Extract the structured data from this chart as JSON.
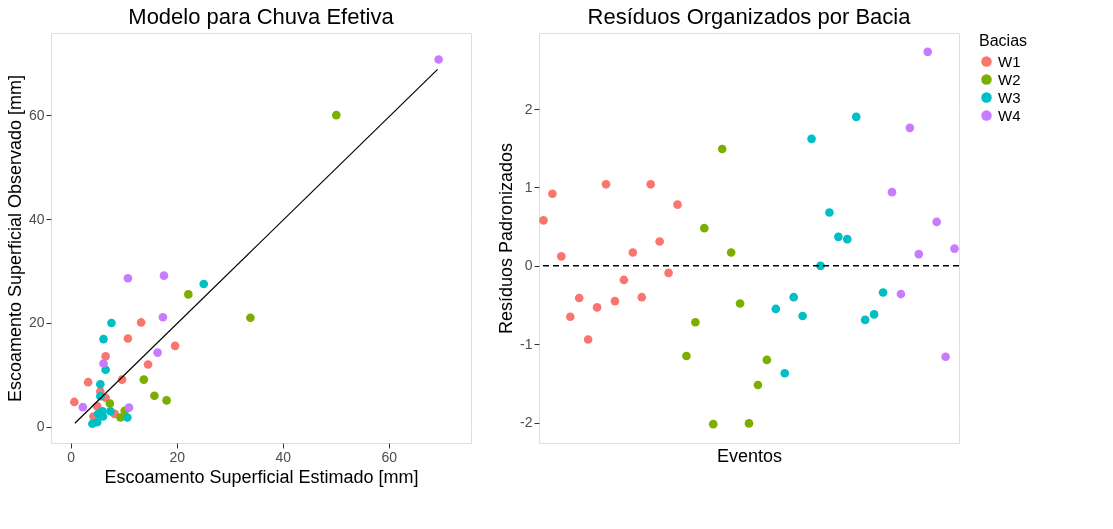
{
  "chart_data": [
    {
      "type": "scatter",
      "title": "Modelo para Chuva Efetiva",
      "xlabel": "Escoamento Superficial Estimado [mm]",
      "ylabel": "Escoamento Superficial Observado [mm]",
      "xlim": [
        -3.7,
        75.5
      ],
      "ylim": [
        -3.1,
        75.8
      ],
      "xticks": [
        0,
        20,
        40,
        60
      ],
      "yticks": [
        0,
        20,
        40,
        60
      ],
      "grid": true,
      "legend": "right",
      "marker": "circle",
      "series": [
        {
          "name": "W1",
          "color": "#f8766d",
          "x": [
            0.7,
            3.3,
            4.3,
            5.6,
            6.6,
            6.6,
            8.3,
            9.7,
            10.8,
            13.3,
            14.6,
            19.7,
            5.0
          ],
          "values": [
            4.8,
            8.6,
            2.0,
            6.8,
            5.6,
            13.6,
            2.5,
            9.1,
            17.0,
            20.1,
            12.0,
            15.6,
            4.0
          ]
        },
        {
          "name": "W2",
          "color": "#7cae00",
          "x": [
            50.1,
            22.2,
            33.9,
            13.8,
            15.8,
            18.1,
            7.4,
            9.4,
            10.2
          ],
          "values": [
            60.0,
            25.5,
            21.0,
            9.1,
            6.0,
            5.1,
            4.5,
            1.8,
            3.1
          ]
        },
        {
          "name": "W3",
          "color": "#00bfc4",
          "x": [
            25.1,
            7.7,
            6.2,
            6.6,
            5.6,
            5.6,
            4.1,
            5.0,
            5.2,
            6.0,
            6.1,
            7.5,
            10.7
          ],
          "values": [
            27.5,
            20.0,
            16.9,
            11.0,
            8.2,
            5.9,
            0.6,
            0.9,
            2.5,
            3.0,
            2.0,
            3.0,
            1.8
          ]
        },
        {
          "name": "W4",
          "color": "#c77cff",
          "x": [
            69.4,
            10.8,
            17.6,
            17.4,
            16.4,
            6.2,
            2.3,
            11.0
          ],
          "values": [
            70.7,
            28.6,
            29.1,
            21.1,
            14.3,
            12.2,
            3.8,
            3.7
          ]
        },
        {
          "type": "line",
          "color": "#000000",
          "marker": "none",
          "line_style": "solid",
          "x": [
            0.8,
            69.2
          ],
          "values": [
            0.7,
            68.8
          ]
        }
      ]
    },
    {
      "type": "scatter",
      "title": "Resíduos Organizados por Bacia",
      "xlabel": "Eventos",
      "ylabel": "Resíduos Padronizados",
      "legend_title": "Bacias",
      "categories": [
        null,
        null,
        null,
        null,
        null,
        null,
        null,
        null,
        null,
        null,
        null,
        null,
        null,
        null,
        null,
        null,
        null,
        null,
        null,
        null,
        null,
        null,
        null,
        null,
        null,
        null,
        null,
        null,
        null,
        null,
        null,
        null,
        null,
        null,
        null,
        null,
        null,
        null,
        null,
        null,
        null,
        null,
        null,
        null,
        null,
        null,
        null
      ],
      "ylim": [
        -2.26,
        2.97
      ],
      "yticks": [
        -2,
        -1,
        0,
        1,
        2
      ],
      "grid": true,
      "legend": "right",
      "tick_labels": "y",
      "marker": "circle",
      "ref_lines": [
        {
          "axis": "y",
          "value": 0,
          "color": "#000000",
          "line_style": "dashed"
        }
      ],
      "series": [
        {
          "name": "W1",
          "color": "#f8766d",
          "values": [
            0.58,
            0.92,
            0.12,
            -0.65,
            -0.41,
            -0.94,
            -0.53,
            1.04,
            -0.45,
            -0.18,
            0.17,
            -0.4,
            1.04,
            0.31,
            -0.09,
            0.78,
            null,
            null,
            null,
            null,
            null,
            null,
            null,
            null,
            null,
            null,
            null,
            null,
            null,
            null,
            null,
            null,
            null,
            null,
            null,
            null,
            null,
            null,
            null,
            null,
            null,
            null,
            null,
            null,
            null,
            null,
            null
          ]
        },
        {
          "name": "W2",
          "color": "#7cae00",
          "values": [
            null,
            null,
            null,
            null,
            null,
            null,
            null,
            null,
            null,
            null,
            null,
            null,
            null,
            null,
            null,
            null,
            -1.15,
            -0.72,
            0.48,
            -2.02,
            1.49,
            0.17,
            -0.48,
            -2.01,
            -1.52,
            -1.2,
            null,
            null,
            null,
            null,
            null,
            null,
            null,
            null,
            null,
            null,
            null,
            null,
            null,
            null,
            null,
            null,
            null,
            null,
            null,
            null,
            null
          ]
        },
        {
          "name": "W3",
          "color": "#00bfc4",
          "values": [
            null,
            null,
            null,
            null,
            null,
            null,
            null,
            null,
            null,
            null,
            null,
            null,
            null,
            null,
            null,
            null,
            null,
            null,
            null,
            null,
            null,
            null,
            null,
            null,
            null,
            null,
            -0.55,
            -1.37,
            -0.4,
            -0.64,
            1.62,
            0.0,
            0.68,
            0.37,
            0.34,
            1.9,
            -0.69,
            -0.62,
            -0.34,
            null,
            null,
            null,
            null,
            null,
            null,
            null,
            null
          ]
        },
        {
          "name": "W4",
          "color": "#c77cff",
          "values": [
            null,
            null,
            null,
            null,
            null,
            null,
            null,
            null,
            null,
            null,
            null,
            null,
            null,
            null,
            null,
            null,
            null,
            null,
            null,
            null,
            null,
            null,
            null,
            null,
            null,
            null,
            null,
            null,
            null,
            null,
            null,
            null,
            null,
            null,
            null,
            null,
            null,
            null,
            null,
            0.94,
            -0.36,
            1.76,
            0.15,
            2.73,
            0.56,
            -1.16,
            0.22
          ]
        }
      ]
    }
  ]
}
